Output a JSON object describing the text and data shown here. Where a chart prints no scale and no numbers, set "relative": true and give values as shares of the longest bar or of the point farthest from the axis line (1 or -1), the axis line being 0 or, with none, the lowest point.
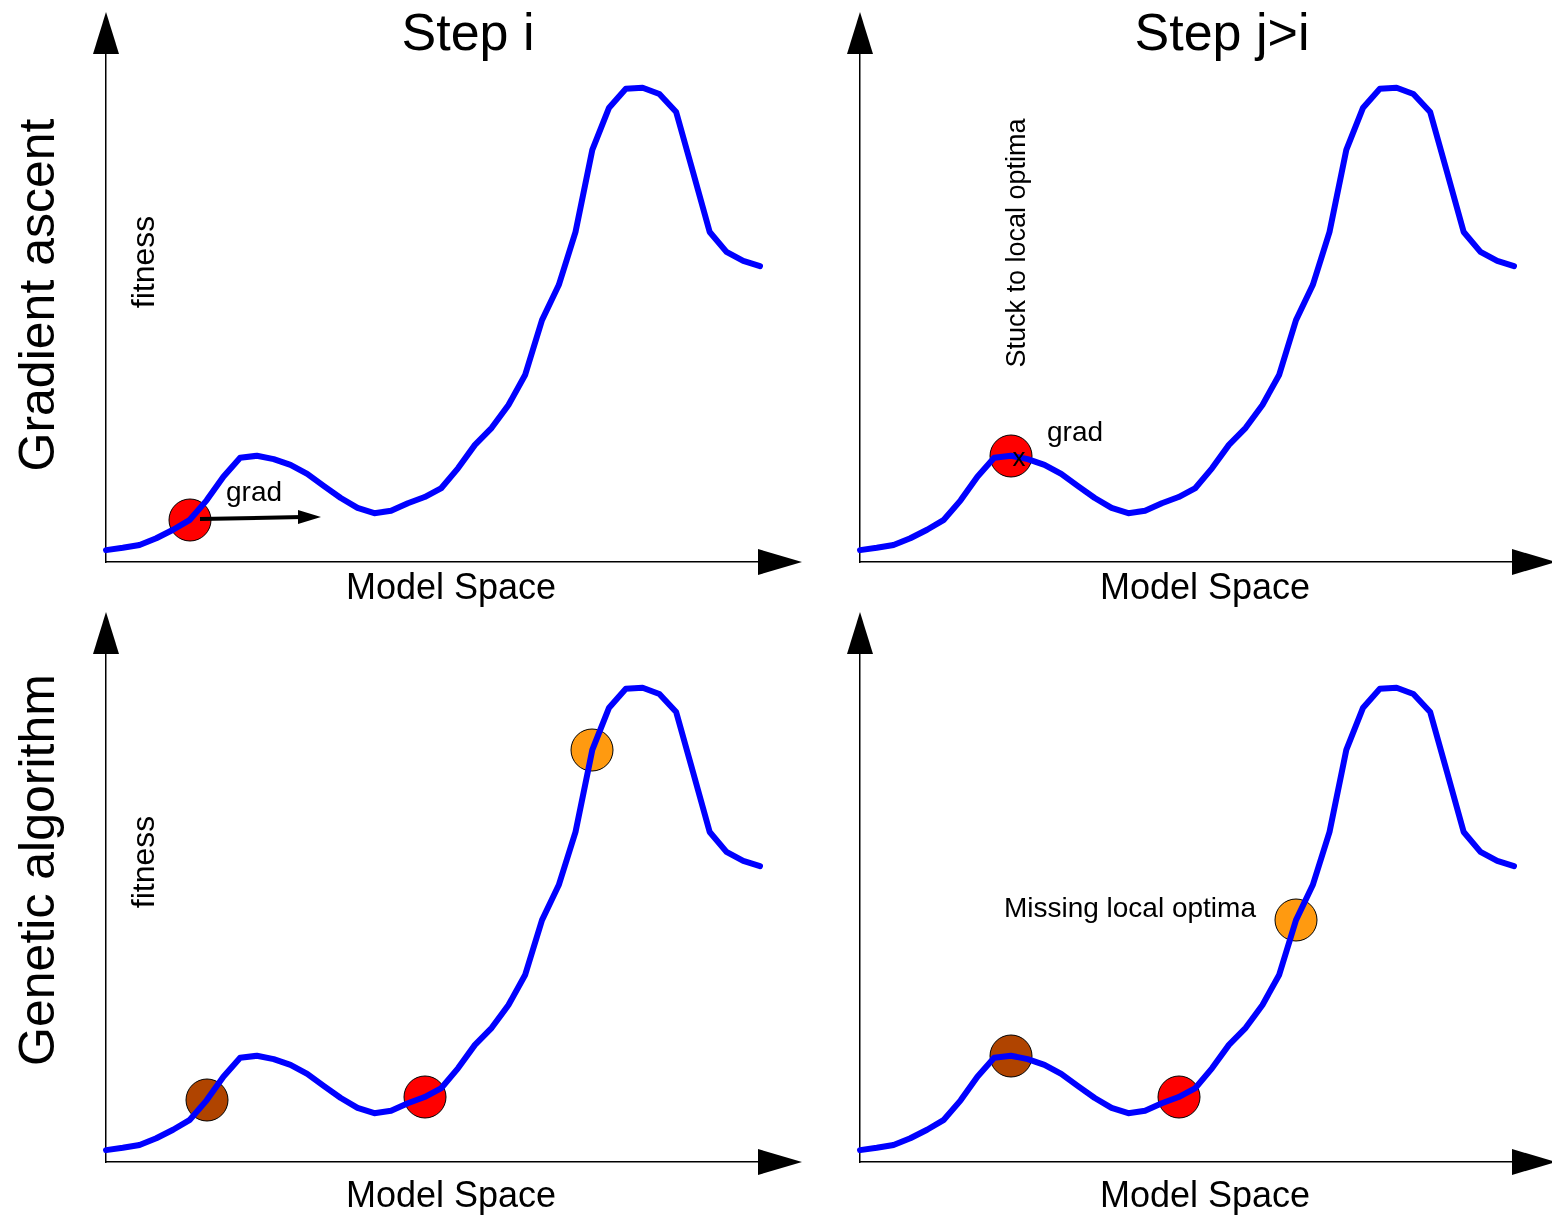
{
  "chart_data": [
    {
      "type": "line",
      "relative": true,
      "title": "Step i",
      "xlabel": "Model Space",
      "ylabel": "fitness",
      "annotations": [
        "Gradient ascent",
        "grad"
      ],
      "categories": [
        null,
        null,
        null,
        null,
        null,
        null,
        null,
        null,
        null,
        null,
        null,
        null,
        null,
        null,
        null,
        null,
        null,
        null,
        null,
        null,
        null,
        null,
        null,
        null,
        null,
        null,
        null,
        null,
        null,
        null,
        null,
        null,
        null,
        null,
        null,
        null,
        null,
        null,
        null,
        null
      ],
      "series": [
        {
          "color": "#0000ff",
          "values": [
            0.025,
            0.03,
            0.036,
            0.05,
            0.068,
            0.089,
            0.13,
            0.18,
            0.22,
            0.224,
            0.217,
            0.205,
            0.186,
            0.16,
            0.135,
            0.114,
            0.103,
            0.108,
            0.124,
            0.137,
            0.156,
            0.198,
            0.247,
            0.283,
            0.331,
            0.395,
            0.51,
            0.584,
            0.696,
            0.869,
            0.958,
            0.998,
            1,
            0.987,
            0.949,
            0.823,
            0.696,
            0.654,
            0.635,
            0.624
          ]
        }
      ]
    },
    {
      "type": "line",
      "relative": true,
      "title": "Step j>i",
      "xlabel": "Model Space",
      "annotations": [
        "Stuck to local optima",
        "grad",
        "x"
      ],
      "categories": [
        null,
        null,
        null,
        null,
        null,
        null,
        null,
        null,
        null,
        null,
        null,
        null,
        null,
        null,
        null,
        null,
        null,
        null,
        null,
        null,
        null,
        null,
        null,
        null,
        null,
        null,
        null,
        null,
        null,
        null,
        null,
        null,
        null,
        null,
        null,
        null,
        null,
        null,
        null,
        null
      ],
      "series": [
        {
          "color": "#0000ff",
          "values": [
            0.025,
            0.03,
            0.036,
            0.05,
            0.068,
            0.089,
            0.13,
            0.18,
            0.22,
            0.224,
            0.217,
            0.205,
            0.186,
            0.16,
            0.135,
            0.114,
            0.103,
            0.108,
            0.124,
            0.137,
            0.156,
            0.198,
            0.247,
            0.283,
            0.331,
            0.395,
            0.51,
            0.584,
            0.696,
            0.869,
            0.958,
            0.998,
            1,
            0.987,
            0.949,
            0.823,
            0.696,
            0.654,
            0.635,
            0.624
          ]
        }
      ]
    },
    {
      "type": "line",
      "relative": true,
      "xlabel": "Model Space",
      "ylabel": "fitness",
      "annotations": [
        "Genetic algorithm"
      ],
      "categories": [
        null,
        null,
        null,
        null,
        null,
        null,
        null,
        null,
        null,
        null,
        null,
        null,
        null,
        null,
        null,
        null,
        null,
        null,
        null,
        null,
        null,
        null,
        null,
        null,
        null,
        null,
        null,
        null,
        null,
        null,
        null,
        null,
        null,
        null,
        null,
        null,
        null,
        null,
        null,
        null
      ],
      "series": [
        {
          "color": "#0000ff",
          "values": [
            0.025,
            0.03,
            0.036,
            0.05,
            0.068,
            0.089,
            0.13,
            0.18,
            0.22,
            0.224,
            0.217,
            0.205,
            0.186,
            0.16,
            0.135,
            0.114,
            0.103,
            0.108,
            0.124,
            0.137,
            0.156,
            0.198,
            0.247,
            0.283,
            0.331,
            0.395,
            0.51,
            0.584,
            0.696,
            0.869,
            0.958,
            0.998,
            1,
            0.987,
            0.949,
            0.823,
            0.696,
            0.654,
            0.635,
            0.624
          ]
        }
      ]
    },
    {
      "type": "line",
      "relative": true,
      "xlabel": "Model Space",
      "annotations": [
        "Missing local optima"
      ],
      "categories": [
        null,
        null,
        null,
        null,
        null,
        null,
        null,
        null,
        null,
        null,
        null,
        null,
        null,
        null,
        null,
        null,
        null,
        null,
        null,
        null,
        null,
        null,
        null,
        null,
        null,
        null,
        null,
        null,
        null,
        null,
        null,
        null,
        null,
        null,
        null,
        null,
        null,
        null,
        null,
        null
      ],
      "series": [
        {
          "color": "#0000ff",
          "values": [
            0.025,
            0.03,
            0.036,
            0.05,
            0.068,
            0.089,
            0.13,
            0.18,
            0.22,
            0.224,
            0.217,
            0.205,
            0.186,
            0.16,
            0.135,
            0.114,
            0.103,
            0.108,
            0.124,
            0.137,
            0.156,
            0.198,
            0.247,
            0.283,
            0.331,
            0.395,
            0.51,
            0.584,
            0.696,
            0.869,
            0.958,
            0.998,
            1,
            0.987,
            0.949,
            0.823,
            0.696,
            0.654,
            0.635,
            0.624
          ]
        }
      ]
    }
  ]
}
